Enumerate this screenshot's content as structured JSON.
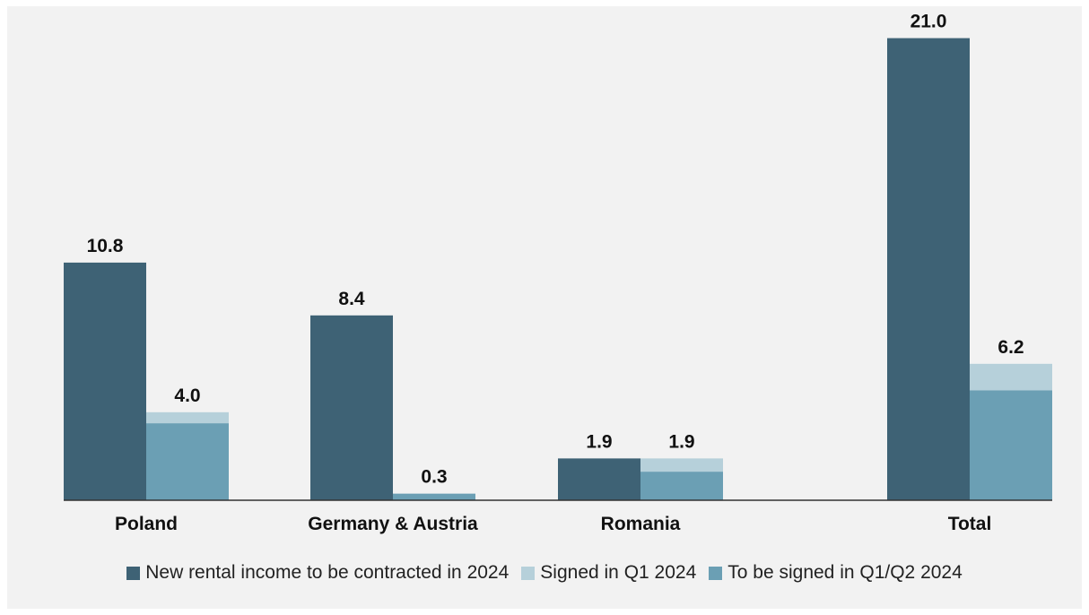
{
  "colors": {
    "new_rental": "#3e6275",
    "signed_q1": "#b6d0da",
    "to_be_signed": "#6b9fb4",
    "background": "#f2f2f2",
    "axis": "#333333"
  },
  "chart_data": {
    "type": "bar",
    "categories": [
      "Poland",
      "Germany & Austria",
      "Romania",
      "Total"
    ],
    "ylim": [
      0,
      22
    ],
    "grid": false,
    "legend_placement": "bottom",
    "series": [
      {
        "name": "New rental income to be contracted in 2024",
        "color_key": "new_rental",
        "values": [
          10.8,
          8.4,
          1.9,
          21.0
        ],
        "labels": [
          "10.8",
          "8.4",
          "1.9",
          "21.0"
        ]
      },
      {
        "name": "Signed in Q1 2024",
        "color_key": "signed_q1",
        "values": [
          0.5,
          0.0,
          0.6,
          1.2
        ]
      },
      {
        "name": "To be signed in Q1/Q2 2024",
        "color_key": "to_be_signed",
        "values": [
          3.5,
          0.3,
          1.3,
          5.0
        ]
      }
    ],
    "stack_totals": [
      4.0,
      0.3,
      1.9,
      6.2
    ],
    "stack_total_labels": [
      "4.0",
      "0.3",
      "1.9",
      "6.2"
    ]
  }
}
